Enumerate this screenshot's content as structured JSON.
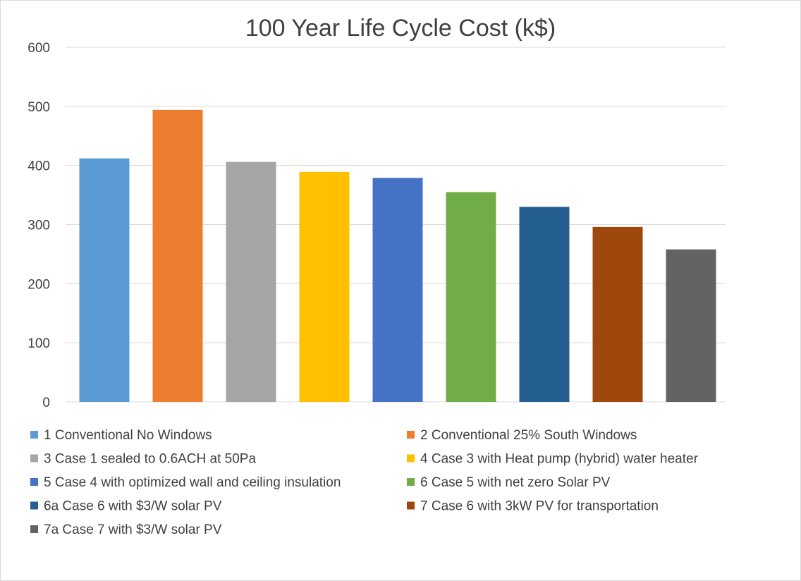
{
  "chart_data": {
    "type": "bar",
    "title": "100 Year Life Cycle Cost (k$)",
    "xlabel": "",
    "ylabel": "",
    "ylim": [
      0,
      600
    ],
    "yticks": [
      0,
      100,
      200,
      300,
      400,
      500,
      600
    ],
    "grid": true,
    "legend_position": "bottom",
    "categories": [
      "1 Conventional No Windows",
      "2 Conventional 25% South Windows",
      "3 Case 1 sealed to 0.6ACH at 50Pa",
      "4 Case 3 with Heat pump (hybrid) water heater",
      "5 Case 4 with optimized wall and ceiling insulation",
      "6 Case 5 with net zero Solar PV",
      "6a Case 6 with $3/W solar PV",
      "7 Case 6 with 3kW PV for transportation",
      "7a Case 7 with $3/W solar PV"
    ],
    "values": [
      412,
      494,
      406,
      389,
      379,
      355,
      330,
      296,
      258
    ],
    "colors": [
      "#5b9bd5",
      "#ed7d31",
      "#a5a5a5",
      "#ffc000",
      "#4472c4",
      "#70ad47",
      "#255e91",
      "#9e480e",
      "#636363"
    ]
  }
}
